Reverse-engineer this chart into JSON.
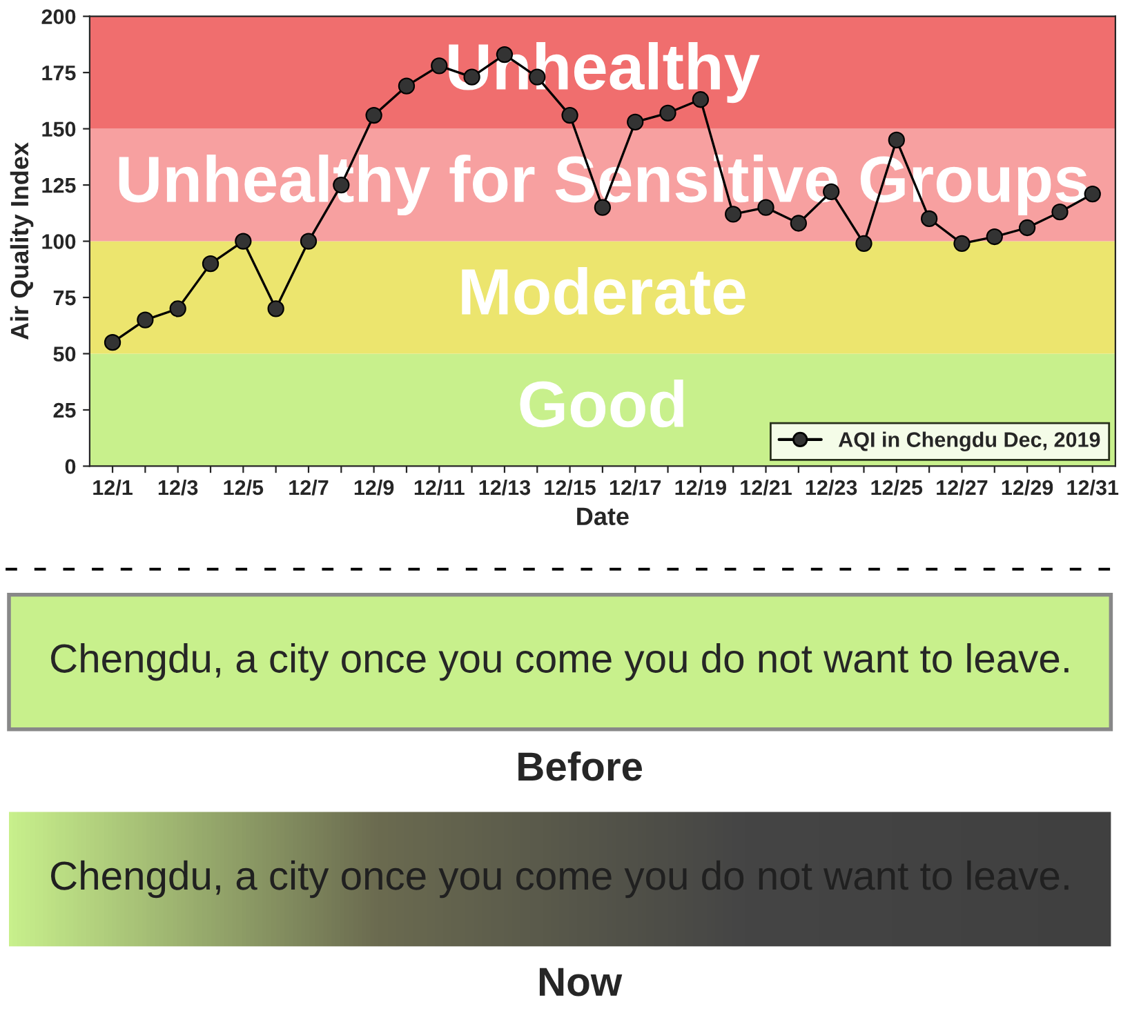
{
  "chart_data": {
    "type": "line",
    "xlabel": "Date",
    "ylabel": "Air Quality Index",
    "categories": [
      "12/1",
      null,
      "12/3",
      null,
      "12/5",
      null,
      "12/7",
      null,
      "12/9",
      null,
      "12/11",
      null,
      "12/13",
      null,
      "12/15",
      null,
      "12/17",
      null,
      "12/19",
      null,
      "12/21",
      null,
      "12/23",
      null,
      "12/25",
      null,
      "12/27",
      null,
      "12/29",
      null,
      "12/31"
    ],
    "series": [
      {
        "name": "AQI in Chengdu Dec, 2019",
        "color": "#000000",
        "values": [
          55,
          65,
          70,
          90,
          100,
          70,
          100,
          125,
          156,
          169,
          178,
          173,
          183,
          173,
          156,
          115,
          153,
          157,
          163,
          112,
          115,
          108,
          122,
          99,
          145,
          110,
          99,
          102,
          106,
          113,
          121
        ]
      }
    ],
    "ylim": [
      0,
      200
    ],
    "yticks": [
      0,
      25,
      50,
      75,
      100,
      125,
      150,
      175,
      200
    ],
    "bands": [
      {
        "axis": "y",
        "from": 0,
        "to": 50,
        "label": "Good",
        "color": "#c8f08c"
      },
      {
        "axis": "y",
        "from": 50,
        "to": 100,
        "label": "Moderate",
        "color": "#ece56e"
      },
      {
        "axis": "y",
        "from": 100,
        "to": 150,
        "label": "Unhealthy for Sensitive Groups",
        "color": "#f7a0a0"
      },
      {
        "axis": "y",
        "from": 150,
        "to": 200,
        "label": "Unhealthy",
        "color": "#f06e6e"
      }
    ],
    "annotations": [
      "Chengdu, a city once you come you do not want to leave.",
      "Before",
      "Chengdu, a city once you come you do not want to leave.",
      "Now"
    ],
    "marker": "circle",
    "line_style": "solid",
    "grid": false,
    "legend": "bottom right"
  }
}
